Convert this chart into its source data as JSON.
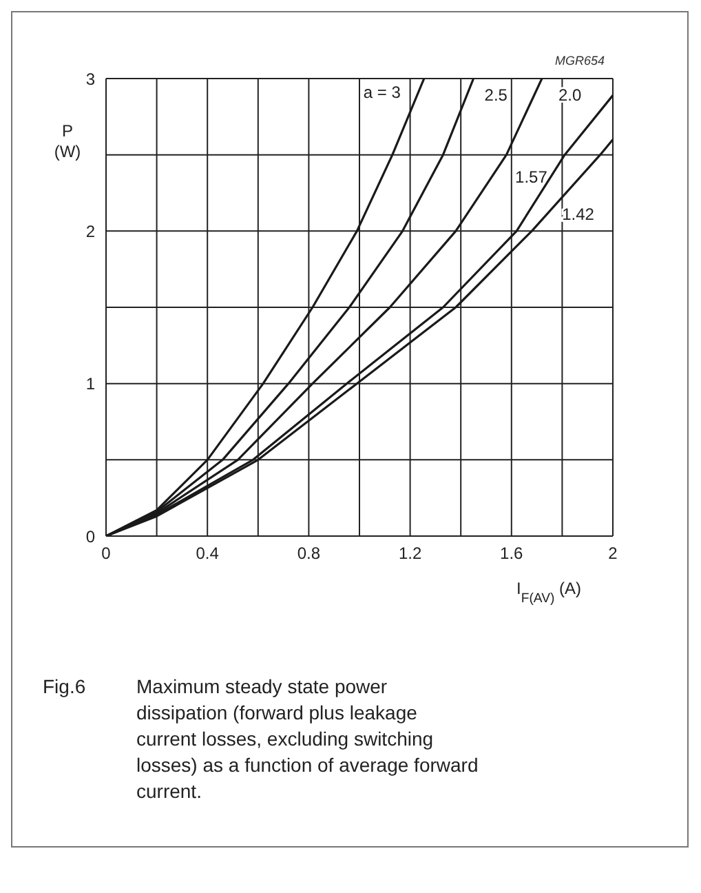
{
  "chart_data": {
    "type": "line",
    "xlabel": "I$_{F(AV)}$ (A)",
    "ylabel": "P (W)",
    "annotations": [
      "MGR654",
      "Fig.6",
      "Maximum steady state power dissipation (forward plus leakage current losses, excluding switching losses) as a function of average forward current."
    ],
    "series": [
      {
        "name": "a = 3",
        "color": "#1a1a1a",
        "x": [
          0,
          0.2,
          0.4,
          0.62,
          0.815,
          0.99,
          1.13,
          1.255
        ],
        "values": [
          0,
          0.17,
          0.5,
          1,
          1.5,
          2,
          2.5,
          3
        ]
      },
      {
        "name": "2.5",
        "color": "#1a1a1a",
        "x": [
          0,
          0.2,
          0.46,
          0.72,
          0.96,
          1.17,
          1.33,
          1.45
        ],
        "values": [
          0,
          0.16,
          0.5,
          1,
          1.5,
          2,
          2.5,
          3
        ]
      },
      {
        "name": "2.0",
        "color": "#1a1a1a",
        "x": [
          0,
          0.2,
          0.52,
          0.815,
          1.12,
          1.38,
          1.58,
          1.72
        ],
        "values": [
          0,
          0.15,
          0.5,
          1,
          1.5,
          2,
          2.5,
          3
        ]
      },
      {
        "name": "1.57",
        "color": "#1a1a1a",
        "x": [
          0,
          0.2,
          0.58,
          0.95,
          1.33,
          1.62,
          1.81,
          2
        ],
        "values": [
          0,
          0.14,
          0.5,
          1,
          1.5,
          2,
          2.5,
          2.89
        ]
      },
      {
        "name": "1.42",
        "color": "#1a1a1a",
        "x": [
          0,
          0.2,
          0.6,
          0.99,
          1.38,
          1.68,
          1.95,
          2
        ],
        "values": [
          0,
          0.13,
          0.5,
          1,
          1.5,
          2,
          2.5,
          2.6
        ]
      }
    ],
    "xlim": [
      0,
      2
    ],
    "xticks": [
      0,
      {
        "value": 0.2,
        "label": null
      },
      0.4,
      {
        "value": 0.6,
        "label": null
      },
      0.8,
      {
        "value": 1.0,
        "label": null
      },
      1.2,
      {
        "value": 1.4,
        "label": null
      },
      1.6,
      {
        "value": 1.8,
        "label": null
      },
      2
    ],
    "ylim": [
      0,
      3
    ],
    "yticks": [
      0,
      {
        "value": 0.5,
        "label": null
      },
      1,
      {
        "value": 1.5,
        "label": null
      },
      2,
      {
        "value": 2.5,
        "label": null
      },
      3
    ],
    "grid": true,
    "marker": "none",
    "line_style": "solid"
  }
}
